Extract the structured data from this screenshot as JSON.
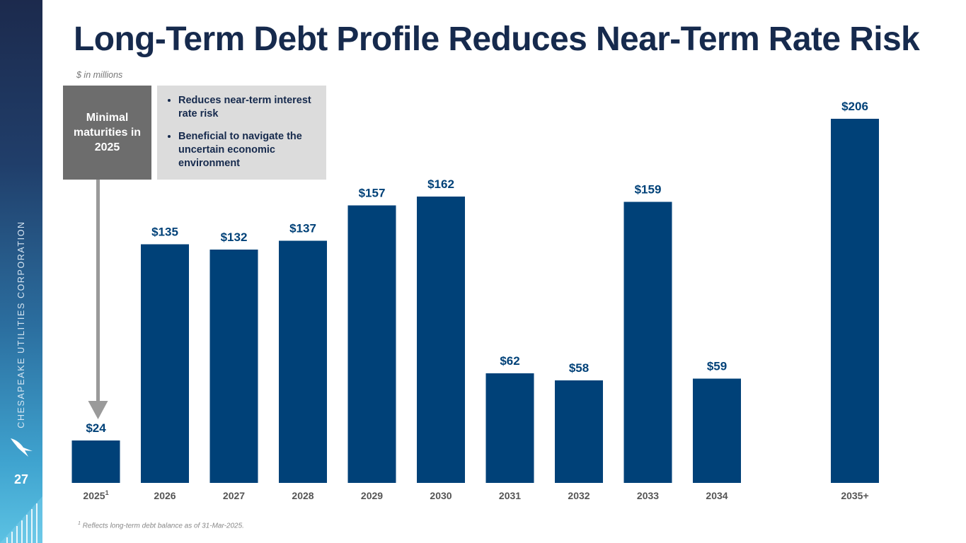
{
  "slide": {
    "title": "Long-Term Debt Profile Reduces Near-Term Rate Risk",
    "subtitle": "$ in millions",
    "page_number": "27",
    "company": "CHESAPEAKE UTILITIES CORPORATION",
    "callout_label": "Minimal maturities in 2025",
    "bullets": [
      "Reduces near-term interest rate risk",
      "Beneficial to navigate the uncertain economic environment"
    ],
    "footnote_marker": "1",
    "footnote": "Reflects long-term debt balance as of 31-Mar-2025."
  },
  "colors": {
    "bar": "#004178",
    "label": "#004178",
    "axis_label": "#555555",
    "arrow": "#9a9a9a"
  },
  "chart_data": {
    "type": "bar",
    "title": "Long-Term Debt Profile Reduces Near-Term Rate Risk",
    "ylabel": "$ in millions",
    "xlabel": "",
    "categories": [
      "2025",
      "2026",
      "2027",
      "2028",
      "2029",
      "2030",
      "2031",
      "2032",
      "2033",
      "2034",
      "2035+"
    ],
    "category_superscripts": [
      "1",
      "",
      "",
      "",
      "",
      "",
      "",
      "",
      "",
      "",
      ""
    ],
    "values": [
      24,
      135,
      132,
      137,
      157,
      162,
      62,
      58,
      159,
      59,
      206
    ],
    "data_labels": [
      "$24",
      "$135",
      "$132",
      "$137",
      "$157",
      "$162",
      "$62",
      "$58",
      "$159",
      "$59",
      "$206"
    ],
    "ylim": [
      0,
      220
    ],
    "grid": false,
    "legend": "none"
  }
}
